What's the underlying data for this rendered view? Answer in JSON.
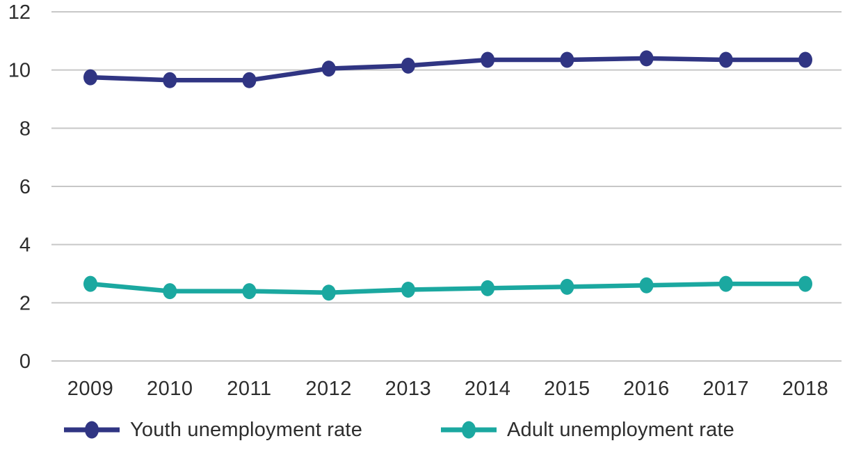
{
  "chart_data": {
    "type": "line",
    "x": [
      "2009",
      "2010",
      "2011",
      "2012",
      "2013",
      "2014",
      "2015",
      "2016",
      "2017",
      "2018"
    ],
    "series": [
      {
        "name": "Youth unemployment rate",
        "color": "#303583",
        "values": [
          9.75,
          9.65,
          9.65,
          10.05,
          10.15,
          10.35,
          10.35,
          10.4,
          10.35,
          10.35
        ]
      },
      {
        "name": "Adult unemployment rate",
        "color": "#1BA8A0",
        "values": [
          2.65,
          2.4,
          2.4,
          2.35,
          2.45,
          2.5,
          2.55,
          2.6,
          2.65,
          2.65
        ]
      }
    ],
    "title": "",
    "xlabel": "",
    "ylabel": "",
    "ylim": [
      0,
      12
    ],
    "yticks": [
      0,
      2,
      4,
      6,
      8,
      10,
      12
    ],
    "grid": true,
    "legend_position": "bottom"
  },
  "colors": {
    "grid": "#c7c7c7",
    "axis_text": "#2d2d2d",
    "background": "#ffffff"
  }
}
